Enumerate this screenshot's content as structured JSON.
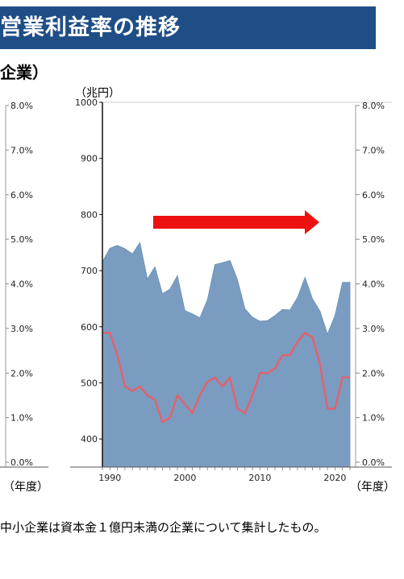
{
  "page": {
    "title": "営業利益率の推移",
    "subtitle": "企業）",
    "note": "中小企業は資本金１億円未満の企業について集計したもの。"
  },
  "left_panel": {
    "right_ticks": [
      "0.0%",
      "1.0%",
      "2.0%",
      "3.0%",
      "4.0%",
      "5.0%",
      "6.0%",
      "7.0%",
      "8.0%"
    ],
    "x_unit": "（年度）"
  },
  "chart_data": {
    "type": "area",
    "x": [
      1989,
      1990,
      1991,
      1992,
      1993,
      1994,
      1995,
      1996,
      1997,
      1998,
      1999,
      2000,
      2001,
      2002,
      2003,
      2004,
      2005,
      2006,
      2007,
      2008,
      2009,
      2010,
      2011,
      2012,
      2013,
      2014,
      2015,
      2016,
      2017,
      2018,
      2019,
      2020,
      2021,
      2022
    ],
    "series": [
      {
        "kind": "area",
        "axis": "left",
        "color": "#7a9cc0",
        "values": [
          716,
          740,
          745,
          739,
          730,
          750,
          685,
          707,
          659,
          667,
          691,
          629,
          623,
          616,
          648,
          711,
          714,
          718,
          684,
          632,
          617,
          610,
          611,
          620,
          631,
          630,
          652,
          688,
          650,
          628,
          587,
          620,
          679,
          679
        ]
      },
      {
        "kind": "line",
        "axis": "right",
        "color": "#e0636f",
        "values": [
          2.9,
          2.9,
          2.4,
          1.7,
          1.6,
          1.7,
          1.5,
          1.4,
          0.9,
          1.0,
          1.5,
          1.3,
          1.1,
          1.5,
          1.8,
          1.9,
          1.7,
          1.9,
          1.2,
          1.1,
          1.5,
          2.0,
          2.0,
          2.1,
          2.4,
          2.4,
          2.7,
          2.9,
          2.8,
          2.2,
          1.2,
          1.2,
          1.9,
          1.9
        ]
      }
    ],
    "y_unit": "（兆円）",
    "ylim": [
      350,
      1000
    ],
    "y_ticks": [
      "400",
      "500",
      "600",
      "700",
      "800",
      "900",
      "1000"
    ],
    "y2lim": [
      0,
      8
    ],
    "y2_ticks": [
      "0.0%",
      "1.0%",
      "2.0%",
      "3.0%",
      "4.0%",
      "5.0%",
      "6.0%",
      "7.0%",
      "8.0%"
    ],
    "x_ticks": [
      "1990",
      "2000",
      "2010",
      "2020"
    ],
    "x_unit": "（年度）",
    "annotation": "right-arrow",
    "colors": {
      "area": "#7a9cc0",
      "line": "#e0636f",
      "arrow": "#ee1111"
    }
  }
}
